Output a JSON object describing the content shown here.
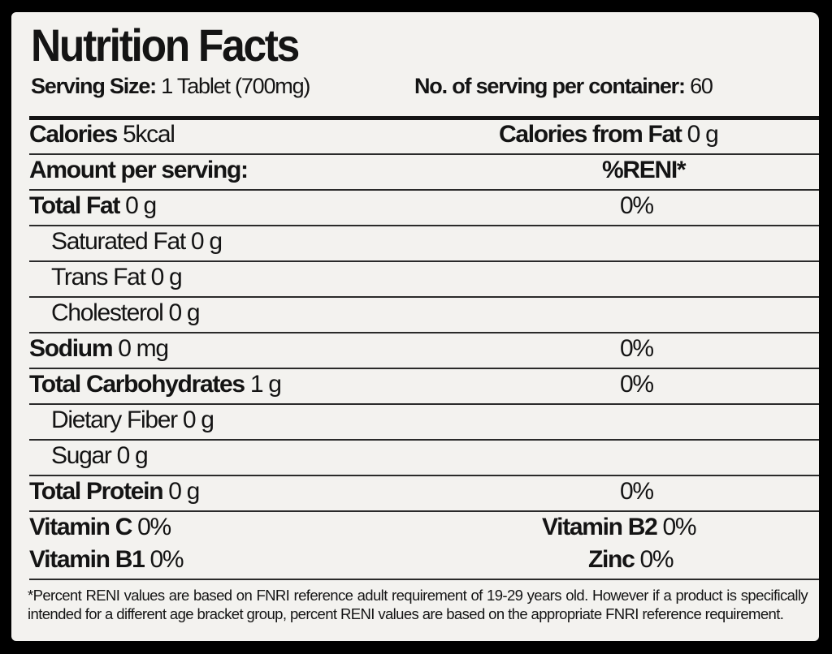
{
  "title": "Nutrition Facts",
  "serving_size": {
    "label": "Serving Size:",
    "value": "1 Tablet (700mg)"
  },
  "servings_per_container": {
    "label": "No. of serving per container:",
    "value": "60"
  },
  "calories": {
    "label": "Calories",
    "value": "5kcal"
  },
  "calories_from_fat": {
    "label": "Calories from Fat",
    "value": "0 g"
  },
  "amount_header": "Amount per serving:",
  "reni_header": "%RENI*",
  "nutrients": [
    {
      "label": "Total Fat",
      "value": "0 g",
      "reni": "0%"
    },
    {
      "label": "Saturated Fat",
      "value": "0 g",
      "reni": ""
    },
    {
      "label": "Trans Fat",
      "value": "0 g",
      "reni": ""
    },
    {
      "label": "Cholesterol",
      "value": "0 g",
      "reni": ""
    },
    {
      "label": "Sodium",
      "value": "0 mg",
      "reni": "0%"
    },
    {
      "label": "Total Carbohydrates",
      "value": "1 g",
      "reni": "0%"
    },
    {
      "label": "Dietary Fiber",
      "value": "0 g",
      "reni": ""
    },
    {
      "label": "Sugar",
      "value": "0 g",
      "reni": ""
    },
    {
      "label": "Total Protein",
      "value": "0 g",
      "reni": "0%"
    }
  ],
  "vitamins": [
    {
      "label": "Vitamin C",
      "value": "0%"
    },
    {
      "label": "Vitamin B2",
      "value": "0%"
    },
    {
      "label": "Vitamin B1",
      "value": "0%"
    },
    {
      "label": "Zinc",
      "value": "0%"
    }
  ],
  "footnote": "*Percent RENI values are based on FNRI reference adult requirement of 19-29 years old.  However if a product is specifically intended for a different age bracket group, percent RENI values are based on the appropriate FNRI reference requirement."
}
